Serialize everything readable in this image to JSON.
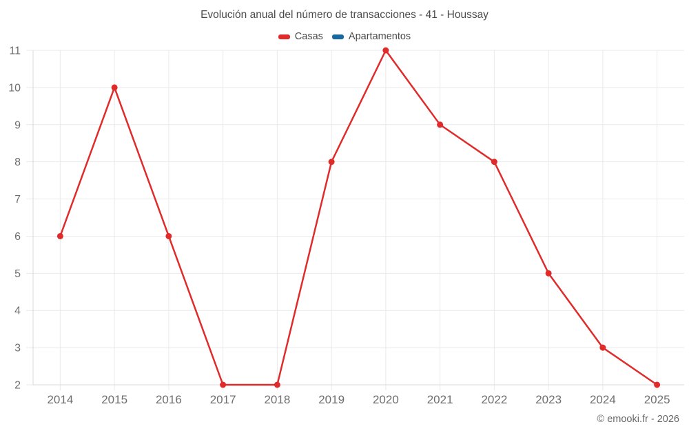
{
  "chart": {
    "credits": "© emooki.fr - 2026",
    "colors": {
      "background": "#ffffff",
      "grid": "#e9e9e9",
      "axis_border": "#d9d9d9",
      "tick_label": "#6e6e6e",
      "title_text": "#4a4a4a",
      "legend_text": "#4a4a4a",
      "credits_text": "#666666",
      "casas": "#e02b2b",
      "apartamentos": "#17699e"
    }
  },
  "chart_data": {
    "type": "line",
    "title": "Evolución anual del número de transacciones - 41 - Houssay",
    "xlabel": "",
    "ylabel": "",
    "categories": [
      "2014",
      "2015",
      "2016",
      "2017",
      "2018",
      "2019",
      "2020",
      "2021",
      "2022",
      "2023",
      "2024",
      "2025"
    ],
    "series": [
      {
        "name": "Casas",
        "color": "#e02b2b",
        "values": [
          6,
          10,
          6,
          2,
          2,
          8,
          11,
          9,
          8,
          5,
          3,
          2
        ]
      },
      {
        "name": "Apartamentos",
        "color": "#17699e",
        "values": []
      }
    ],
    "ylim": [
      2,
      11
    ],
    "y_ticks": [
      2,
      3,
      4,
      5,
      6,
      7,
      8,
      9,
      10,
      11
    ],
    "grid": true,
    "legend_position": "top",
    "marker": "circle"
  }
}
